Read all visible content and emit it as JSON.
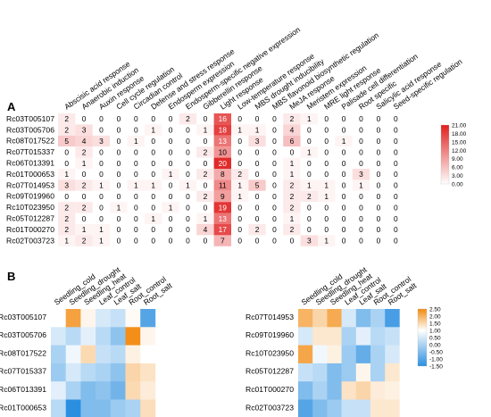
{
  "panel_a": {
    "label": "A",
    "legend_ticks": [
      "21.00",
      "18.00",
      "15.00",
      "12.00",
      "9.00",
      "6.00",
      "3.00",
      "0.00"
    ]
  },
  "panel_b": {
    "label": "B",
    "legend_ticks": [
      "2.50",
      "2.00",
      "1.50",
      "1.00",
      "0.50",
      "0.00",
      "-0.50",
      "-1.00",
      "-1.50"
    ]
  },
  "chart_data": [
    {
      "type": "heatmap",
      "panel": "A",
      "columns": [
        "Abscisic acid response",
        "Anaerobic induction",
        "Auxin response",
        "Cell cycle regulation",
        "Circadian control",
        "Defense and stress response",
        "Endosperm expression",
        "Endosperm-specific negative expression",
        "Gibberellin response",
        "Light response",
        "Low-temperature response",
        "MBS drought inducibility",
        "MBS flavonoid biosynthetic regulation",
        "MeJA response",
        "Meristem expression",
        "MRE light response",
        "Palisade cell differentiation",
        "Root specific",
        "Salicylic acid response",
        "Seed-specific regulation"
      ],
      "rows": [
        "Rc03T005107",
        "Rc03T005706",
        "Rc08T017522",
        "Rc07T015337",
        "Rc06T013391",
        "Rc01T000653",
        "Rc07T014953",
        "Rc09T019960",
        "Rc10T023950",
        "Rc05T012287",
        "Rc01T000270",
        "Rc02T003723"
      ],
      "values": [
        [
          2,
          0,
          0,
          0,
          0,
          0,
          0,
          2,
          0,
          16,
          0,
          0,
          0,
          2,
          1,
          0,
          0,
          0,
          0,
          0
        ],
        [
          2,
          3,
          0,
          0,
          0,
          1,
          0,
          0,
          1,
          18,
          1,
          1,
          0,
          4,
          0,
          0,
          0,
          0,
          0,
          0
        ],
        [
          5,
          4,
          3,
          0,
          1,
          0,
          0,
          0,
          0,
          13,
          0,
          3,
          0,
          6,
          0,
          0,
          1,
          0,
          0,
          0
        ],
        [
          0,
          2,
          0,
          0,
          0,
          0,
          0,
          0,
          2,
          10,
          0,
          0,
          0,
          0,
          1,
          0,
          0,
          0,
          0,
          0
        ],
        [
          0,
          1,
          0,
          0,
          0,
          0,
          0,
          0,
          0,
          20,
          0,
          0,
          0,
          1,
          0,
          0,
          0,
          0,
          0,
          0
        ],
        [
          1,
          0,
          0,
          0,
          0,
          0,
          1,
          0,
          2,
          8,
          2,
          0,
          0,
          1,
          0,
          0,
          0,
          3,
          0,
          0
        ],
        [
          3,
          2,
          1,
          0,
          1,
          1,
          0,
          1,
          0,
          11,
          1,
          5,
          0,
          2,
          1,
          1,
          0,
          1,
          0,
          0
        ],
        [
          0,
          0,
          0,
          0,
          0,
          0,
          0,
          0,
          2,
          9,
          1,
          0,
          0,
          2,
          2,
          1,
          0,
          0,
          0,
          0
        ],
        [
          2,
          2,
          0,
          1,
          0,
          0,
          1,
          0,
          0,
          19,
          0,
          0,
          0,
          2,
          0,
          0,
          0,
          0,
          0,
          0
        ],
        [
          2,
          0,
          0,
          0,
          0,
          1,
          0,
          0,
          1,
          13,
          0,
          0,
          0,
          1,
          0,
          0,
          0,
          0,
          0,
          0
        ],
        [
          2,
          1,
          1,
          0,
          0,
          0,
          0,
          0,
          4,
          17,
          0,
          2,
          0,
          2,
          0,
          0,
          0,
          0,
          0,
          0
        ],
        [
          1,
          2,
          1,
          0,
          0,
          0,
          0,
          0,
          0,
          7,
          0,
          0,
          0,
          0,
          3,
          1,
          0,
          0,
          0,
          0
        ]
      ],
      "color_range": [
        0,
        21
      ],
      "colors": {
        "low": "#ffffff",
        "high": "#e02020"
      }
    },
    {
      "type": "heatmap",
      "panel": "B-left",
      "columns": [
        "Seedling_cold",
        "Seedling_drought",
        "Seedling_heat",
        "Leaf_control",
        "Leaf_salt",
        "Root_control",
        "Root_salt"
      ],
      "rows": [
        "Rc03T005107",
        "Rc03T005706",
        "Rc08T017522",
        "Rc07T015337",
        "Rc06T013391",
        "Rc01T000653"
      ],
      "values": [
        [
          0.0,
          2.0,
          0.2,
          -0.3,
          -0.4,
          0.1,
          -1.2
        ],
        [
          -0.3,
          -0.5,
          -0.2,
          -0.5,
          -0.8,
          2.4,
          0.2
        ],
        [
          -0.6,
          -0.1,
          0.8,
          -0.4,
          -0.5,
          0.3,
          0.0
        ],
        [
          -0.7,
          -0.3,
          -0.5,
          -0.6,
          -0.8,
          0.9,
          0.6
        ],
        [
          -0.2,
          -0.6,
          -0.9,
          -0.8,
          -1.0,
          0.8,
          0.4
        ],
        [
          -0.5,
          -1.5,
          -0.9,
          -0.9,
          -0.7,
          -0.6,
          0.7
        ]
      ],
      "color_range": [
        -1.5,
        2.5
      ],
      "colors": {
        "low": "#2b8fe0",
        "mid": "#ffffff",
        "high": "#f28a0f"
      }
    },
    {
      "type": "heatmap",
      "panel": "B-right",
      "columns": [
        "Seedling_cold",
        "Seedling_drought",
        "Seedling_heat",
        "Leaf_control",
        "Leaf_salt",
        "Root_control",
        "Root_salt"
      ],
      "rows": [
        "Rc07T014953",
        "Rc09T019960",
        "Rc10T023950",
        "Rc05T012287",
        "Rc01T000270",
        "Rc02T003723"
      ],
      "values": [
        [
          1.6,
          0.9,
          1.8,
          -0.3,
          -0.9,
          -0.6,
          -1.3
        ],
        [
          -0.3,
          0.5,
          0.5,
          -0.6,
          -0.2,
          -0.5,
          -0.4
        ],
        [
          1.9,
          -0.1,
          0.3,
          -0.7,
          -1.1,
          -0.6,
          -0.3
        ],
        [
          -0.4,
          -0.5,
          -0.9,
          -0.7,
          0.2,
          -0.6,
          0.5
        ],
        [
          -0.9,
          -0.6,
          -0.9,
          0.6,
          0.9,
          0.4,
          0.3
        ],
        [
          -1.2,
          -0.9,
          -0.7,
          -0.4,
          -0.4,
          0.5,
          0.5
        ]
      ],
      "color_range": [
        -1.5,
        2.5
      ],
      "colors": {
        "low": "#2b8fe0",
        "mid": "#ffffff",
        "high": "#f28a0f"
      }
    }
  ]
}
